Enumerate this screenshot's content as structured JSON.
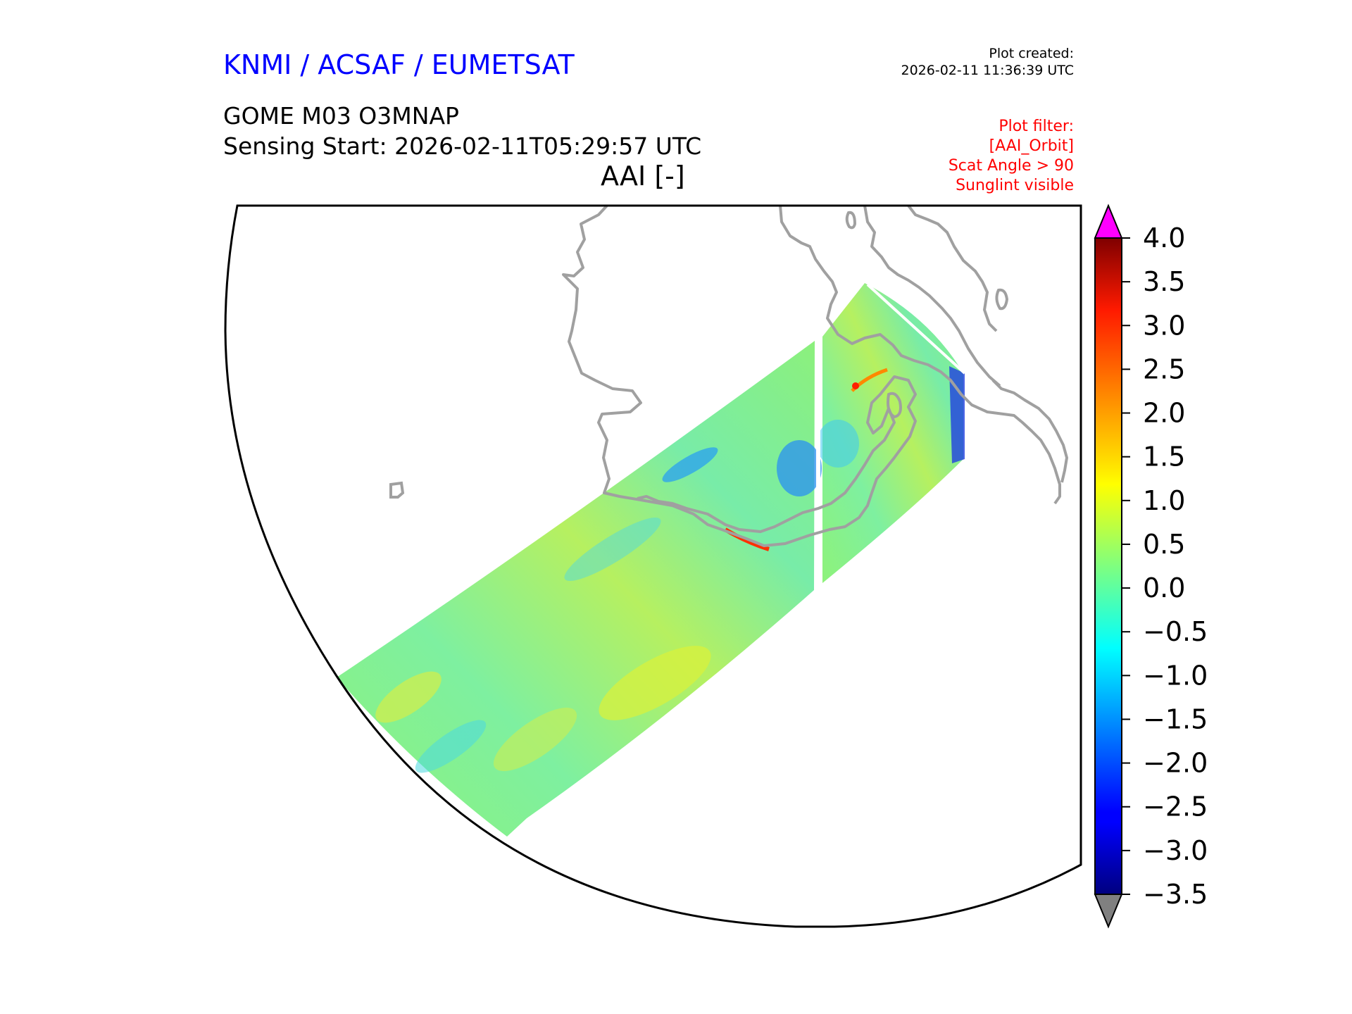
{
  "header": {
    "organization": "KNMI / ACSAF / EUMETSAT",
    "plot_created_label": "Plot created:",
    "plot_created_time": "2026-02-11 11:36:39 UTC",
    "product": "GOME M03 O3MNAP",
    "sensing_start": "Sensing Start: 2026-02-11T05:29:57 UTC",
    "variable": "AAI [-]"
  },
  "filters": [
    "Plot filter:",
    "[AAI_Orbit]",
    "Scat Angle > 90",
    "Sunglint visible"
  ],
  "colorbar": {
    "min": -3.5,
    "max": 4.0,
    "ticks": [
      "4.0",
      "3.5",
      "3.0",
      "2.5",
      "2.0",
      "1.5",
      "1.0",
      "0.5",
      "0.0",
      "−0.5",
      "−1.0",
      "−1.5",
      "−2.0",
      "−2.5",
      "−3.0",
      "−3.5"
    ],
    "over_color": "#ff00ff",
    "under_color": "#808080",
    "colormap": "jet"
  },
  "map": {
    "coastline_color": "#a0a0a0",
    "frame_color": "#000000"
  }
}
